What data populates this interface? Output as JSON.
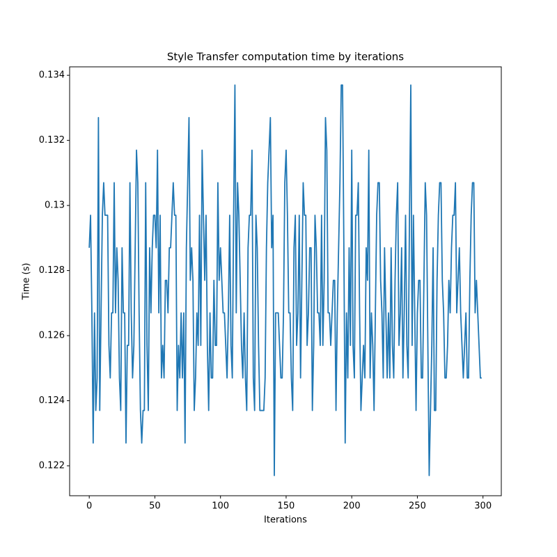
{
  "chart_data": {
    "type": "line",
    "title": "Style Transfer computation time by iterations",
    "xlabel": "Iterations",
    "ylabel": "Time (s)",
    "color": "#1f77b4",
    "grid": false,
    "xlim": [
      -14.95,
      313.95
    ],
    "ylim": [
      0.12108,
      0.13426
    ],
    "xticks": [
      0,
      50,
      100,
      150,
      200,
      250,
      300
    ],
    "yticks": [
      0.122,
      0.124,
      0.126,
      0.128,
      0.13,
      0.132,
      0.134
    ],
    "x": [
      0,
      1,
      2,
      3,
      4,
      5,
      6,
      7,
      8,
      9,
      10,
      11,
      12,
      13,
      14,
      15,
      16,
      17,
      18,
      19,
      20,
      21,
      22,
      23,
      24,
      25,
      26,
      27,
      28,
      29,
      30,
      31,
      32,
      33,
      34,
      35,
      36,
      37,
      38,
      39,
      40,
      41,
      42,
      43,
      44,
      45,
      46,
      47,
      48,
      49,
      50,
      51,
      52,
      53,
      54,
      55,
      56,
      57,
      58,
      59,
      60,
      61,
      62,
      63,
      64,
      65,
      66,
      67,
      68,
      69,
      70,
      71,
      72,
      73,
      74,
      75,
      76,
      77,
      78,
      79,
      80,
      81,
      82,
      83,
      84,
      85,
      86,
      87,
      88,
      89,
      90,
      91,
      92,
      93,
      94,
      95,
      96,
      97,
      98,
      99,
      100,
      101,
      102,
      103,
      104,
      105,
      106,
      107,
      108,
      109,
      110,
      111,
      112,
      113,
      114,
      115,
      116,
      117,
      118,
      119,
      120,
      121,
      122,
      123,
      124,
      125,
      126,
      127,
      128,
      129,
      130,
      131,
      132,
      133,
      134,
      135,
      136,
      137,
      138,
      139,
      140,
      141,
      142,
      143,
      144,
      145,
      146,
      147,
      148,
      149,
      150,
      151,
      152,
      153,
      154,
      155,
      156,
      157,
      158,
      159,
      160,
      161,
      162,
      163,
      164,
      165,
      166,
      167,
      168,
      169,
      170,
      171,
      172,
      173,
      174,
      175,
      176,
      177,
      178,
      179,
      180,
      181,
      182,
      183,
      184,
      185,
      186,
      187,
      188,
      189,
      190,
      191,
      192,
      193,
      194,
      195,
      196,
      197,
      198,
      199,
      200,
      201,
      202,
      203,
      204,
      205,
      206,
      207,
      208,
      209,
      210,
      211,
      212,
      213,
      214,
      215,
      216,
      217,
      218,
      219,
      220,
      221,
      222,
      223,
      224,
      225,
      226,
      227,
      228,
      229,
      230,
      231,
      232,
      233,
      234,
      235,
      236,
      237,
      238,
      239,
      240,
      241,
      242,
      243,
      244,
      245,
      246,
      247,
      248,
      249,
      250,
      251,
      252,
      253,
      254,
      255,
      256,
      257,
      258,
      259,
      260,
      261,
      262,
      263,
      264,
      265,
      266,
      267,
      268,
      269,
      270,
      271,
      272,
      273,
      274,
      275,
      276,
      277,
      278,
      279,
      280,
      281,
      282,
      283,
      284,
      285,
      286,
      287,
      288,
      289,
      290,
      291,
      292,
      293,
      294,
      295,
      296,
      297,
      298,
      299
    ],
    "values": [
      0.1287,
      0.1297,
      0.1267,
      0.1227,
      0.1267,
      0.1237,
      0.1247,
      0.1327,
      0.1237,
      0.1267,
      0.1297,
      0.1307,
      0.1297,
      0.1297,
      0.1297,
      0.1257,
      0.1247,
      0.1267,
      0.1267,
      0.1307,
      0.1267,
      0.1287,
      0.1277,
      0.1247,
      0.1237,
      0.1287,
      0.1267,
      0.1267,
      0.1227,
      0.1257,
      0.1257,
      0.1307,
      0.1267,
      0.1247,
      0.1257,
      0.1287,
      0.1317,
      0.1307,
      0.1267,
      0.1237,
      0.1227,
      0.1237,
      0.1237,
      0.1307,
      0.1257,
      0.1237,
      0.1287,
      0.1267,
      0.1287,
      0.1297,
      0.1297,
      0.1287,
      0.1317,
      0.1267,
      0.1297,
      0.1247,
      0.1257,
      0.1247,
      0.1277,
      0.1277,
      0.1267,
      0.1287,
      0.1287,
      0.1297,
      0.1307,
      0.1297,
      0.1297,
      0.1237,
      0.1257,
      0.1247,
      0.1267,
      0.1247,
      0.1267,
      0.1227,
      0.1287,
      0.1307,
      0.1327,
      0.1277,
      0.1287,
      0.1277,
      0.1237,
      0.1247,
      0.1267,
      0.1257,
      0.1297,
      0.1257,
      0.1317,
      0.1297,
      0.1277,
      0.1297,
      0.1257,
      0.1237,
      0.1267,
      0.1247,
      0.1247,
      0.1277,
      0.1257,
      0.1257,
      0.1307,
      0.1277,
      0.1287,
      0.1277,
      0.1267,
      0.1267,
      0.1257,
      0.1247,
      0.1267,
      0.1297,
      0.1257,
      0.1247,
      0.1297,
      0.1337,
      0.1267,
      0.1307,
      0.1297,
      0.1277,
      0.1257,
      0.1247,
      0.1267,
      0.1247,
      0.1237,
      0.1287,
      0.1297,
      0.1297,
      0.1317,
      0.1247,
      0.1237,
      0.1297,
      0.1287,
      0.1257,
      0.1237,
      0.1237,
      0.1237,
      0.1237,
      0.1247,
      0.1287,
      0.1307,
      0.1317,
      0.1327,
      0.1287,
      0.1297,
      0.1217,
      0.1267,
      0.1267,
      0.1267,
      0.1257,
      0.1247,
      0.1247,
      0.1267,
      0.1307,
      0.1317,
      0.1297,
      0.1267,
      0.1267,
      0.1247,
      0.1237,
      0.1287,
      0.1297,
      0.1257,
      0.1267,
      0.1297,
      0.1247,
      0.1277,
      0.1307,
      0.1297,
      0.1297,
      0.1257,
      0.1267,
      0.1287,
      0.1287,
      0.1237,
      0.1257,
      0.1297,
      0.1287,
      0.1267,
      0.1267,
      0.1257,
      0.1297,
      0.1257,
      0.1277,
      0.1327,
      0.1317,
      0.1267,
      0.1267,
      0.1257,
      0.1267,
      0.1277,
      0.1277,
      0.1237,
      0.1267,
      0.1287,
      0.1307,
      0.1337,
      0.1337,
      0.1287,
      0.1227,
      0.1267,
      0.1247,
      0.1287,
      0.1257,
      0.1317,
      0.1257,
      0.1247,
      0.1297,
      0.1297,
      0.1307,
      0.1267,
      0.1237,
      0.1247,
      0.1257,
      0.1247,
      0.1287,
      0.1277,
      0.1317,
      0.1247,
      0.1267,
      0.1257,
      0.1237,
      0.1267,
      0.1297,
      0.1307,
      0.1307,
      0.1277,
      0.1267,
      0.1247,
      0.1287,
      0.1267,
      0.1247,
      0.1267,
      0.1247,
      0.1287,
      0.1257,
      0.1247,
      0.1277,
      0.1297,
      0.1307,
      0.1257,
      0.1267,
      0.1287,
      0.1247,
      0.1267,
      0.1297,
      0.1257,
      0.1247,
      0.1297,
      0.1337,
      0.1257,
      0.1297,
      0.1267,
      0.1237,
      0.1267,
      0.1277,
      0.1277,
      0.1247,
      0.1247,
      0.1277,
      0.1307,
      0.1297,
      0.1257,
      0.1217,
      0.1237,
      0.1257,
      0.1287,
      0.1237,
      0.1237,
      0.1277,
      0.1297,
      0.1307,
      0.1307,
      0.1277,
      0.1267,
      0.1247,
      0.1247,
      0.1257,
      0.1277,
      0.1267,
      0.1287,
      0.1297,
      0.1297,
      0.1307,
      0.1267,
      0.1277,
      0.1287,
      0.1267,
      0.1257,
      0.1247,
      0.1257,
      0.1267,
      0.1247,
      0.1247,
      0.1277,
      0.1297,
      0.1307,
      0.1307,
      0.1267,
      0.1277,
      0.1267,
      0.1257,
      0.1247,
      0.1247
    ]
  }
}
